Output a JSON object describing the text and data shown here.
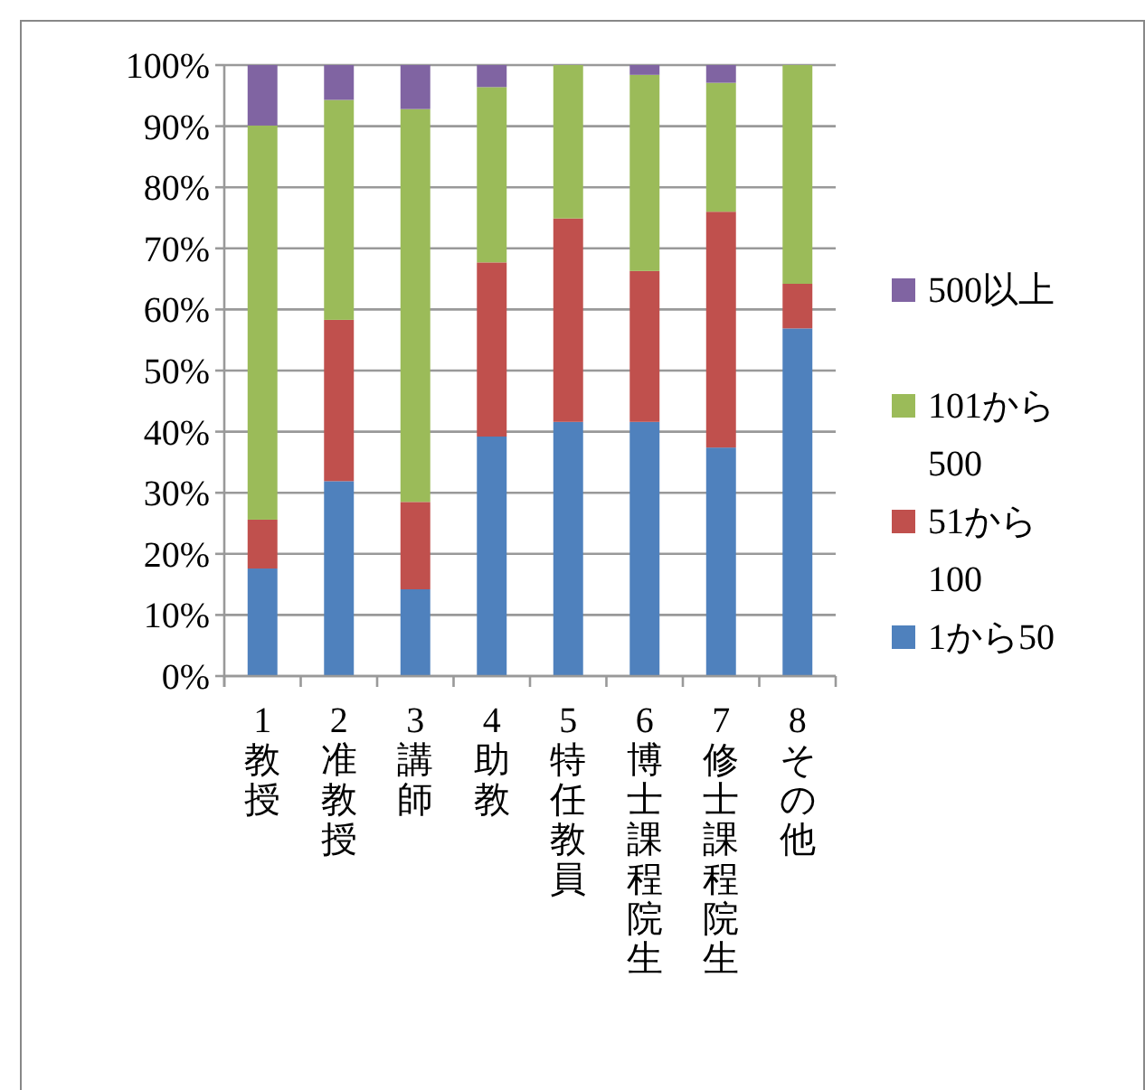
{
  "chart_data": {
    "type": "bar",
    "stacked": true,
    "categories": [
      "1教授",
      "2准教授",
      "3講師",
      "4助教",
      "5特任教員",
      "6博士課程院生",
      "7修士課程院生",
      "8その他"
    ],
    "series": [
      {
        "name": "1から50",
        "color": "#4f81bd",
        "values": [
          17.6,
          31.9,
          14.2,
          39.2,
          41.6,
          41.6,
          37.4,
          56.9
        ]
      },
      {
        "name": "51から100",
        "color": "#c0504d",
        "values": [
          8.0,
          26.4,
          14.3,
          28.5,
          33.3,
          24.7,
          38.6,
          7.3
        ]
      },
      {
        "name": "101から500",
        "color": "#9bbb59",
        "values": [
          64.5,
          36.0,
          64.3,
          28.7,
          25.1,
          32.1,
          21.1,
          35.8
        ]
      },
      {
        "name": "500以上",
        "color": "#8064a2",
        "values": [
          9.9,
          5.7,
          7.2,
          3.6,
          0,
          1.6,
          2.9,
          0
        ]
      }
    ],
    "ylim": [
      0,
      100
    ],
    "yticks": [
      {
        "value": 0,
        "label": "0%"
      },
      {
        "value": 10,
        "label": "10%"
      },
      {
        "value": 20,
        "label": "20%"
      },
      {
        "value": 30,
        "label": "30%"
      },
      {
        "value": 40,
        "label": "40%"
      },
      {
        "value": 50,
        "label": "50%"
      },
      {
        "value": 60,
        "label": "60%"
      },
      {
        "value": 70,
        "label": "70%"
      },
      {
        "value": 80,
        "label": "80%"
      },
      {
        "value": 90,
        "label": "90%"
      },
      {
        "value": 100,
        "label": "100%"
      }
    ],
    "grid": "y",
    "legend": "right"
  }
}
